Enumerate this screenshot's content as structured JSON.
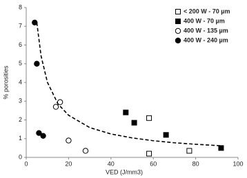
{
  "chart_data": {
    "type": "scatter",
    "xlabel": "VED (J/mm3)",
    "ylabel": "% porosities",
    "xlim": [
      0,
      100
    ],
    "xticks": [
      0,
      20,
      40,
      60,
      80,
      100
    ],
    "ylim": [
      0,
      8
    ],
    "yticks": [
      0,
      1,
      2,
      3,
      4,
      5,
      6,
      7,
      8
    ],
    "legend": "upper right",
    "series": [
      {
        "name": "< 200 W - 70 µm",
        "color": "#000000",
        "marker": "square",
        "filled": false,
        "x": [
          58,
          58,
          77
        ],
        "values": [
          2.1,
          0.2,
          0.35
        ]
      },
      {
        "name": "400 W - 70 µm",
        "color": "#000000",
        "marker": "square",
        "filled": true,
        "x": [
          47,
          51,
          66,
          92
        ],
        "values": [
          2.4,
          1.85,
          1.2,
          0.5
        ]
      },
      {
        "name": "400 W - 135 µm",
        "color": "#000000",
        "marker": "circle",
        "filled": false,
        "x": [
          14,
          16,
          20,
          28
        ],
        "values": [
          2.7,
          2.95,
          0.9,
          0.35
        ]
      },
      {
        "name": "400 W - 240 µm",
        "color": "#000000",
        "marker": "circle",
        "filled": true,
        "x": [
          4,
          5,
          6,
          8
        ],
        "values": [
          7.2,
          5.0,
          1.3,
          1.15
        ]
      }
    ],
    "trendline": {
      "color": "#000000",
      "dashed": true,
      "x": [
        5,
        7,
        10,
        15,
        20,
        30,
        40,
        50,
        60,
        70,
        80,
        92
      ],
      "values": [
        7.2,
        5.42,
        4.01,
        2.85,
        2.25,
        1.59,
        1.25,
        1.04,
        0.89,
        0.78,
        0.7,
        0.62
      ]
    }
  }
}
